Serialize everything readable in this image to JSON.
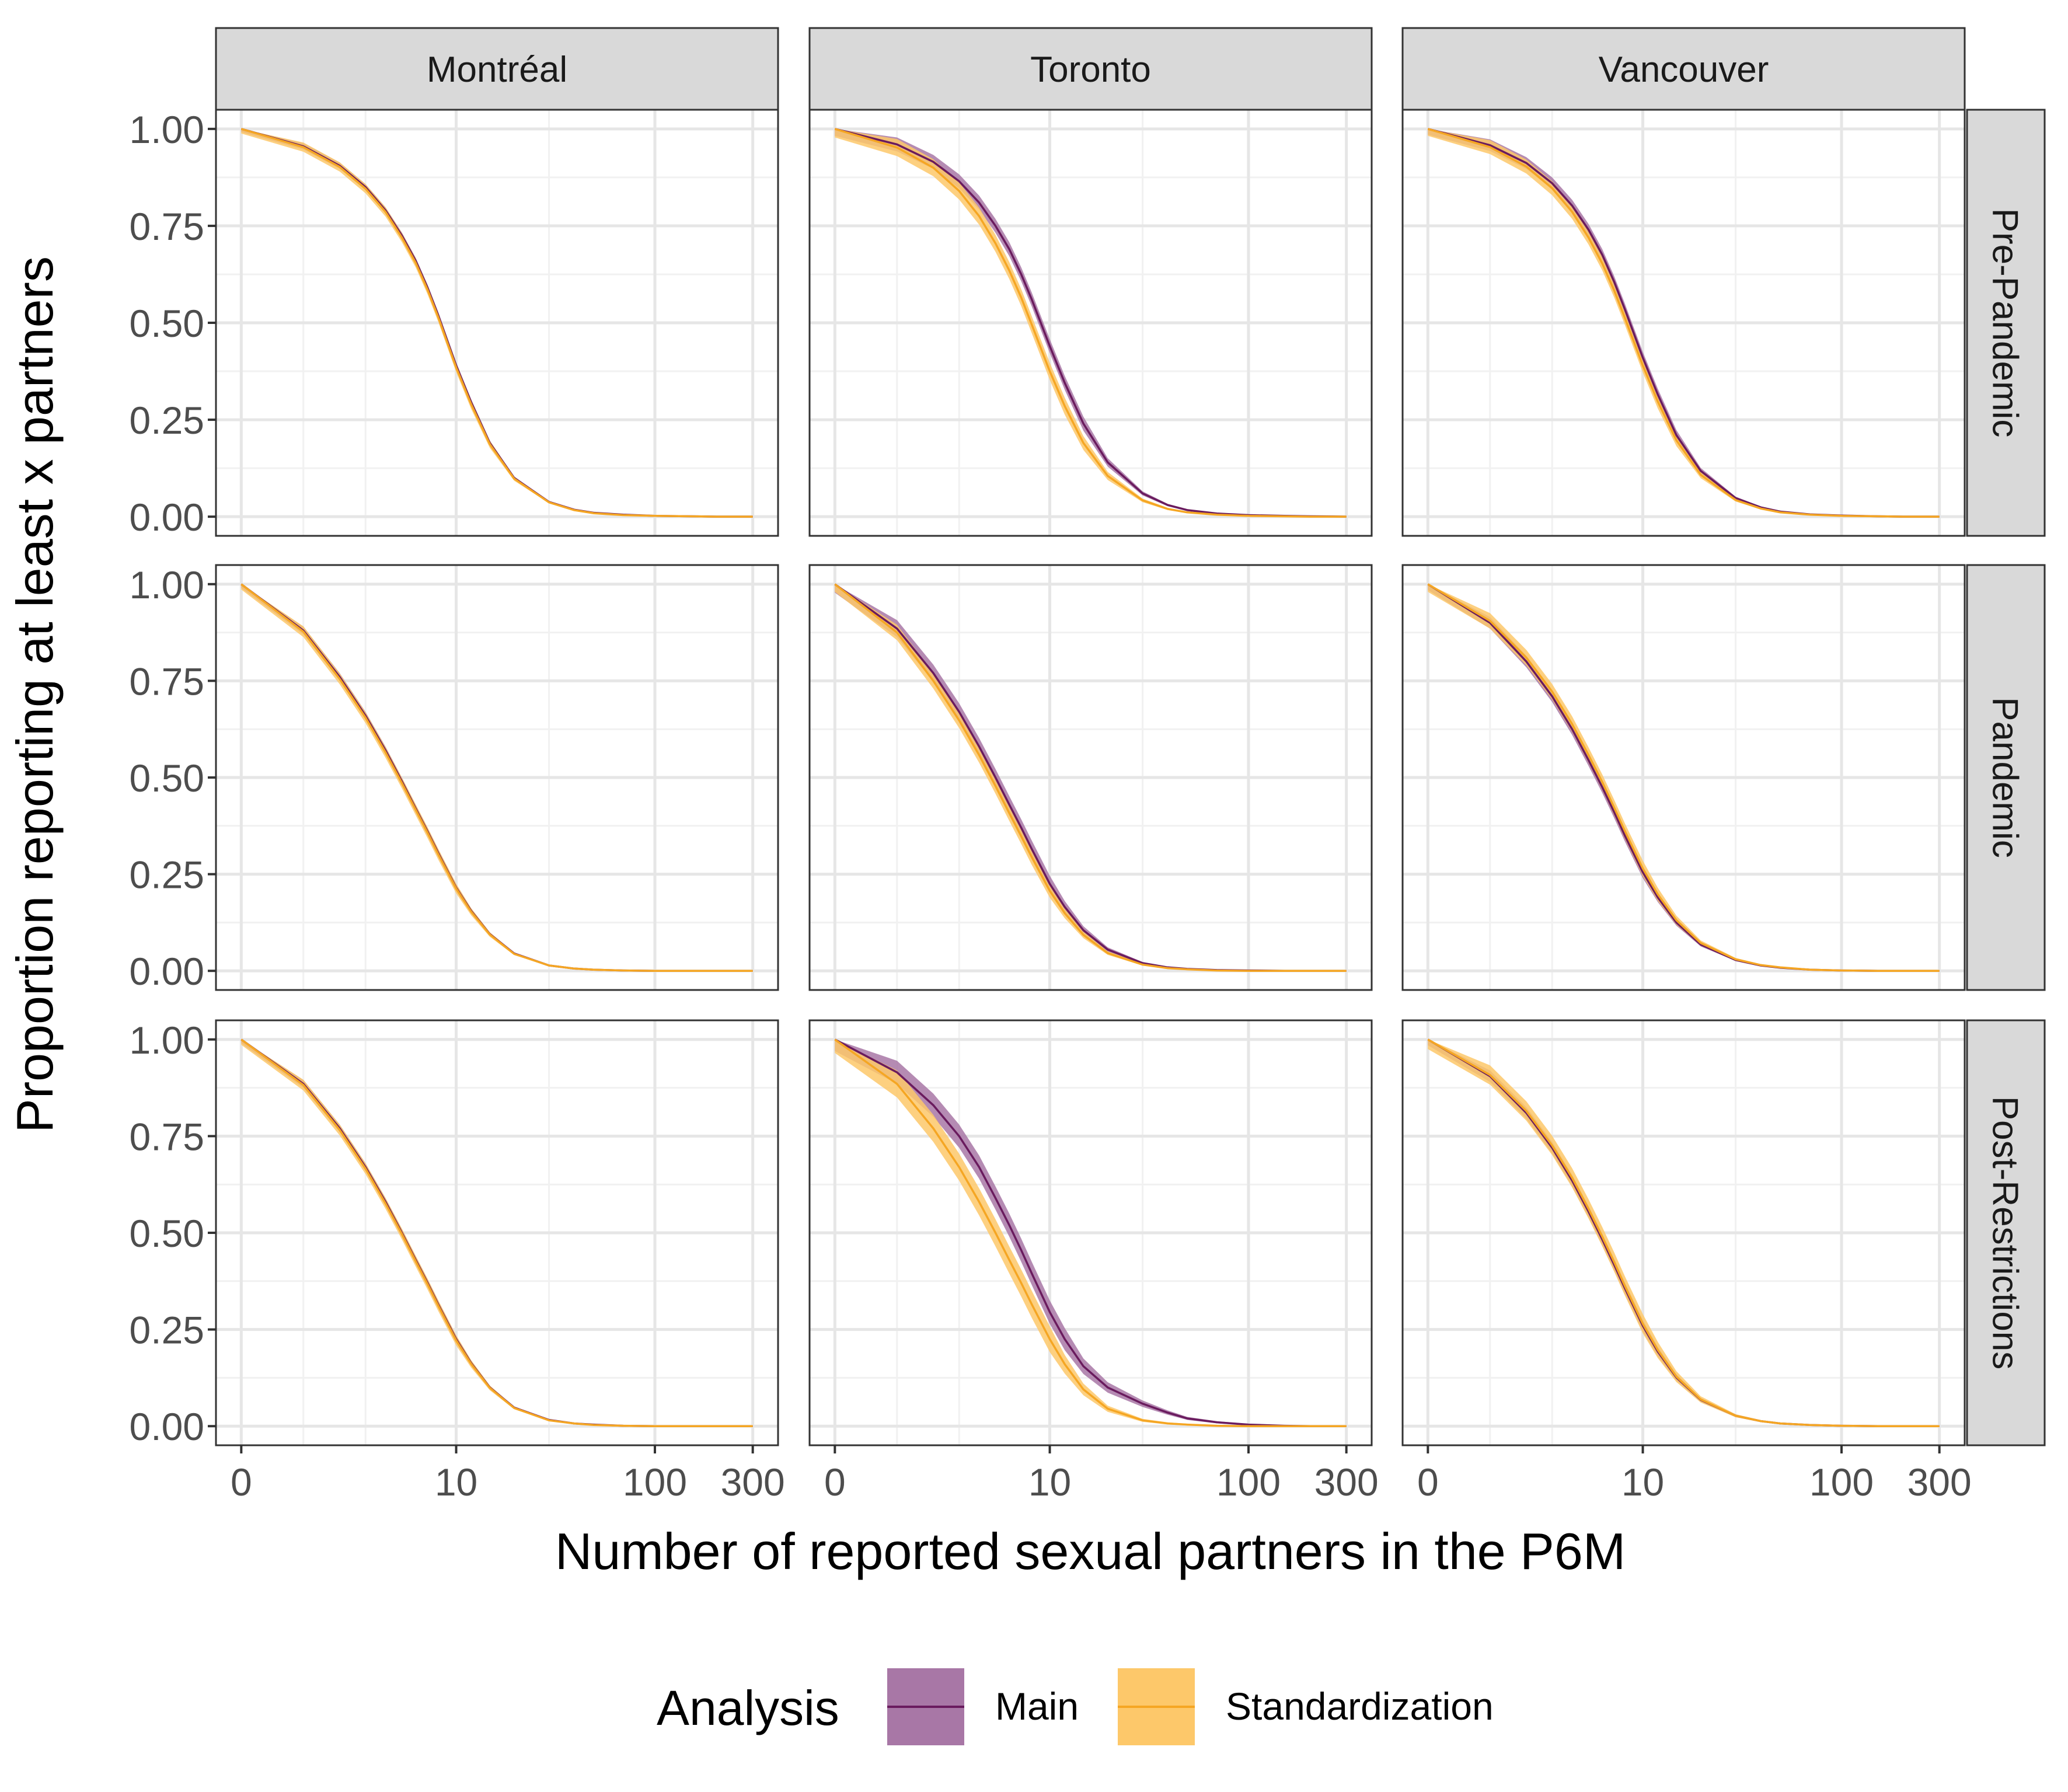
{
  "chart_data": {
    "type": "line",
    "title": "",
    "xlabel": "Number of reported sexual partners in the P6M",
    "ylabel": "Proportion reporting at least x partners",
    "x_scale": "pseudo-log",
    "x_ticks": [
      0,
      10,
      100,
      300
    ],
    "x_tick_labels": [
      "0",
      "10",
      "100",
      "300"
    ],
    "xlim": [
      0,
      300
    ],
    "y_ticks": [
      0,
      0.25,
      0.5,
      0.75,
      1.0
    ],
    "y_tick_labels": [
      "0.00",
      "0.25",
      "0.50",
      "0.75",
      "1.00"
    ],
    "ylim": [
      0,
      1
    ],
    "grid": true,
    "cities": [
      "Montréal",
      "Toronto",
      "Vancouver"
    ],
    "periods": [
      "Pre-Pandemic",
      "Pandemic",
      "Post-Restrictions"
    ],
    "x": [
      0,
      1,
      2,
      3,
      4,
      5,
      6,
      7,
      8,
      10,
      12,
      15,
      20,
      30,
      40,
      50,
      70,
      100,
      150,
      200,
      300
    ],
    "legend": {
      "title": "Analysis",
      "position": "bottom",
      "entries": [
        {
          "label": "Main",
          "line_color": "#6a1b5e",
          "fill_color": "#a877a6"
        },
        {
          "label": "Standardization",
          "line_color": "#f5a623",
          "fill_color": "#fdc86a"
        }
      ]
    },
    "panels": [
      {
        "city": "Montréal",
        "period": "Pre-Pandemic",
        "series": [
          {
            "name": "Main",
            "y": [
              1.0,
              0.955,
              0.905,
              0.85,
              0.79,
              0.725,
              0.66,
              0.59,
              0.52,
              0.39,
              0.295,
              0.19,
              0.1,
              0.038,
              0.018,
              0.01,
              0.005,
              0.002,
              0.001,
              0.0,
              0.0
            ],
            "band": 0.008
          },
          {
            "name": "Standardization",
            "y": [
              1.0,
              0.953,
              0.902,
              0.846,
              0.786,
              0.72,
              0.655,
              0.585,
              0.515,
              0.385,
              0.29,
              0.187,
              0.098,
              0.037,
              0.017,
              0.009,
              0.004,
              0.002,
              0.001,
              0.0,
              0.0
            ],
            "band": 0.012
          }
        ]
      },
      {
        "city": "Toronto",
        "period": "Pre-Pandemic",
        "series": [
          {
            "name": "Main",
            "y": [
              1.0,
              0.96,
              0.915,
              0.865,
              0.81,
              0.75,
              0.69,
              0.625,
              0.56,
              0.44,
              0.345,
              0.24,
              0.14,
              0.06,
              0.03,
              0.017,
              0.008,
              0.004,
              0.002,
              0.001,
              0.0
            ],
            "band": 0.018
          },
          {
            "name": "Standardization",
            "y": [
              1.0,
              0.952,
              0.9,
              0.84,
              0.775,
              0.705,
              0.635,
              0.565,
              0.495,
              0.375,
              0.285,
              0.19,
              0.105,
              0.042,
              0.02,
              0.011,
              0.005,
              0.002,
              0.001,
              0.0,
              0.0
            ],
            "band": 0.022
          }
        ]
      },
      {
        "city": "Vancouver",
        "period": "Pre-Pandemic",
        "series": [
          {
            "name": "Main",
            "y": [
              1.0,
              0.958,
              0.912,
              0.86,
              0.802,
              0.74,
              0.675,
              0.605,
              0.535,
              0.41,
              0.315,
              0.21,
              0.118,
              0.048,
              0.024,
              0.013,
              0.006,
              0.003,
              0.001,
              0.0,
              0.0
            ],
            "band": 0.015
          },
          {
            "name": "Standardization",
            "y": [
              1.0,
              0.953,
              0.903,
              0.847,
              0.786,
              0.72,
              0.653,
              0.583,
              0.513,
              0.39,
              0.297,
              0.197,
              0.108,
              0.043,
              0.021,
              0.011,
              0.005,
              0.002,
              0.001,
              0.0,
              0.0
            ],
            "band": 0.018
          }
        ]
      },
      {
        "city": "Montréal",
        "period": "Pandemic",
        "series": [
          {
            "name": "Main",
            "y": [
              1.0,
              0.88,
              0.76,
              0.66,
              0.57,
              0.49,
              0.42,
              0.36,
              0.305,
              0.215,
              0.155,
              0.095,
              0.045,
              0.014,
              0.006,
              0.003,
              0.001,
              0.0,
              0.0,
              0.0,
              0.0
            ],
            "band": 0.01
          },
          {
            "name": "Standardization",
            "y": [
              1.0,
              0.877,
              0.755,
              0.655,
              0.565,
              0.486,
              0.417,
              0.357,
              0.302,
              0.213,
              0.153,
              0.094,
              0.044,
              0.014,
              0.006,
              0.003,
              0.001,
              0.0,
              0.0,
              0.0,
              0.0
            ],
            "band": 0.014
          }
        ]
      },
      {
        "city": "Toronto",
        "period": "Pandemic",
        "series": [
          {
            "name": "Main",
            "y": [
              1.0,
              0.885,
              0.77,
              0.67,
              0.58,
              0.5,
              0.43,
              0.37,
              0.315,
              0.225,
              0.165,
              0.105,
              0.055,
              0.02,
              0.009,
              0.005,
              0.002,
              0.001,
              0.0,
              0.0,
              0.0
            ],
            "band": 0.022
          },
          {
            "name": "Standardization",
            "y": [
              1.0,
              0.875,
              0.75,
              0.648,
              0.558,
              0.478,
              0.408,
              0.348,
              0.294,
              0.207,
              0.149,
              0.093,
              0.046,
              0.016,
              0.007,
              0.004,
              0.001,
              0.0,
              0.0,
              0.0,
              0.0
            ],
            "band": 0.02
          }
        ]
      },
      {
        "city": "Vancouver",
        "period": "Pandemic",
        "series": [
          {
            "name": "Main",
            "y": [
              1.0,
              0.9,
              0.8,
              0.71,
              0.625,
              0.545,
              0.475,
              0.41,
              0.35,
              0.255,
              0.19,
              0.125,
              0.068,
              0.028,
              0.014,
              0.008,
              0.003,
              0.001,
              0.0,
              0.0,
              0.0
            ],
            "band": 0.015
          },
          {
            "name": "Standardization",
            "y": [
              1.0,
              0.905,
              0.81,
              0.722,
              0.638,
              0.558,
              0.488,
              0.422,
              0.362,
              0.265,
              0.198,
              0.131,
              0.072,
              0.03,
              0.015,
              0.009,
              0.003,
              0.001,
              0.0,
              0.0,
              0.0
            ],
            "band": 0.02
          }
        ]
      },
      {
        "city": "Montréal",
        "period": "Post-Restrictions",
        "series": [
          {
            "name": "Main",
            "y": [
              1.0,
              0.885,
              0.77,
              0.67,
              0.58,
              0.5,
              0.43,
              0.37,
              0.315,
              0.225,
              0.163,
              0.1,
              0.048,
              0.016,
              0.007,
              0.004,
              0.001,
              0.0,
              0.0,
              0.0,
              0.0
            ],
            "band": 0.01
          },
          {
            "name": "Standardization",
            "y": [
              1.0,
              0.882,
              0.766,
              0.666,
              0.576,
              0.497,
              0.427,
              0.367,
              0.312,
              0.222,
              0.161,
              0.099,
              0.047,
              0.015,
              0.007,
              0.003,
              0.001,
              0.0,
              0.0,
              0.0,
              0.0
            ],
            "band": 0.014
          }
        ]
      },
      {
        "city": "Toronto",
        "period": "Post-Restrictions",
        "series": [
          {
            "name": "Main",
            "y": [
              1.0,
              0.915,
              0.83,
              0.75,
              0.67,
              0.59,
              0.52,
              0.455,
              0.395,
              0.295,
              0.225,
              0.155,
              0.1,
              0.058,
              0.035,
              0.02,
              0.01,
              0.004,
              0.001,
              0.0,
              0.0
            ],
            "band": 0.03
          },
          {
            "name": "Standardization",
            "y": [
              1.0,
              0.885,
              0.77,
              0.67,
              0.58,
              0.5,
              0.43,
              0.37,
              0.315,
              0.225,
              0.16,
              0.095,
              0.045,
              0.015,
              0.007,
              0.004,
              0.001,
              0.0,
              0.0,
              0.0,
              0.0
            ],
            "band": 0.035
          }
        ]
      },
      {
        "city": "Vancouver",
        "period": "Post-Restrictions",
        "series": [
          {
            "name": "Main",
            "y": [
              1.0,
              0.905,
              0.81,
              0.72,
              0.635,
              0.555,
              0.483,
              0.417,
              0.357,
              0.26,
              0.193,
              0.126,
              0.068,
              0.027,
              0.013,
              0.007,
              0.003,
              0.001,
              0.0,
              0.0,
              0.0
            ],
            "band": 0.015
          },
          {
            "name": "Standardization",
            "y": [
              1.0,
              0.908,
              0.815,
              0.726,
              0.642,
              0.562,
              0.49,
              0.424,
              0.363,
              0.265,
              0.197,
              0.128,
              0.069,
              0.027,
              0.013,
              0.007,
              0.003,
              0.001,
              0.0,
              0.0,
              0.0
            ],
            "band": 0.025
          }
        ]
      }
    ]
  }
}
